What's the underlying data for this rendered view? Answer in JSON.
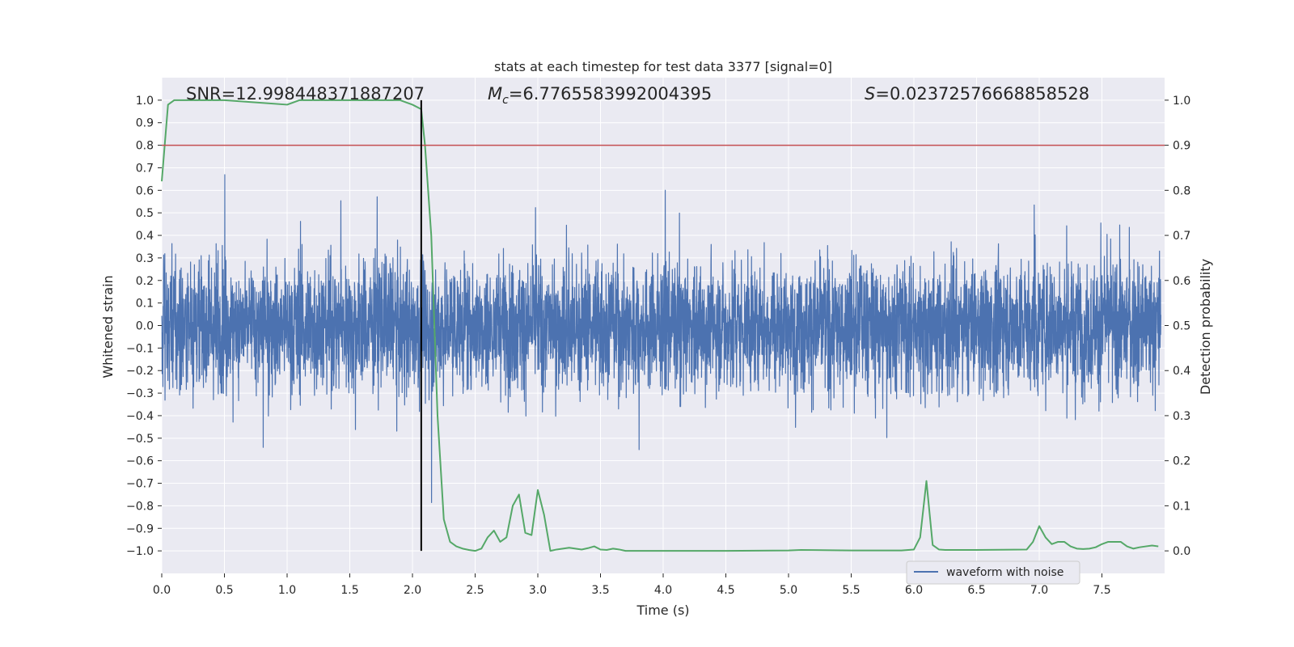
{
  "chart_data": {
    "type": "line",
    "title": "stats at each timestep for test data 3377 [signal=0]",
    "xlabel": "Time (s)",
    "ylabel_left": "Whitened strain",
    "ylabel_right": "Detection probability",
    "xlim": [
      0.0,
      8.0
    ],
    "ylim_left": [
      -1.1,
      1.1
    ],
    "ylim_right": [
      -0.05,
      1.05
    ],
    "x_ticks": [
      0.0,
      0.5,
      1.0,
      1.5,
      2.0,
      2.5,
      3.0,
      3.5,
      4.0,
      4.5,
      5.0,
      5.5,
      6.0,
      6.5,
      7.0,
      7.5
    ],
    "x_tick_labels": [
      "0.0",
      "0.5",
      "1.0",
      "1.5",
      "2.0",
      "2.5",
      "3.0",
      "3.5",
      "4.0",
      "4.5",
      "5.0",
      "5.5",
      "6.0",
      "6.5",
      "7.0",
      "7.5"
    ],
    "y_left_ticks": [
      -1.0,
      -0.9,
      -0.8,
      -0.7,
      -0.6,
      -0.5,
      -0.4,
      -0.3,
      -0.2,
      -0.1,
      0.0,
      0.1,
      0.2,
      0.3,
      0.4,
      0.5,
      0.6,
      0.7,
      0.8,
      0.9,
      1.0
    ],
    "y_left_tick_labels": [
      "−1.0",
      "−0.9",
      "−0.8",
      "−0.7",
      "−0.6",
      "−0.5",
      "−0.4",
      "−0.3",
      "−0.2",
      "−0.1",
      "0.0",
      "0.1",
      "0.2",
      "0.3",
      "0.4",
      "0.5",
      "0.6",
      "0.7",
      "0.8",
      "0.9",
      "1.0"
    ],
    "y_right_ticks": [
      0.0,
      0.1,
      0.2,
      0.3,
      0.4,
      0.5,
      0.6,
      0.7,
      0.8,
      0.9,
      1.0
    ],
    "y_right_tick_labels": [
      "0.0",
      "0.1",
      "0.2",
      "0.3",
      "0.4",
      "0.5",
      "0.6",
      "0.7",
      "0.8",
      "0.9",
      "1.0"
    ],
    "grid": true,
    "legend": {
      "placement": "lower-right",
      "entries": [
        {
          "name": "waveform with noise",
          "color": "#4c72b0"
        }
      ]
    },
    "annotations": {
      "snr": "SNR=12.998448371887207",
      "mc_symbol": "M",
      "mc_sub": "c",
      "mc_value": "=6.7765583992004395",
      "s_symbol": "S",
      "s_value": "=0.02372576668858528"
    },
    "colors": {
      "background": "#eaeaf2",
      "waveform": "#4c72b0",
      "probability": "#55a868",
      "threshold": "#c44e52",
      "marker": "#000000"
    },
    "series": [
      {
        "name": "waveform with noise",
        "axis": "left",
        "summary": "dense noisy whitened strain over 0.0-8.0 s; body within about ±0.4, peaks near ±1.0"
      },
      {
        "name": "detection probability",
        "axis": "right",
        "x": [
          0.0,
          0.05,
          0.1,
          0.2,
          0.5,
          1.0,
          1.1,
          1.5,
          1.8,
          1.9,
          2.0,
          2.07,
          2.1,
          2.15,
          2.2,
          2.25,
          2.3,
          2.35,
          2.4,
          2.45,
          2.5,
          2.55,
          2.6,
          2.65,
          2.7,
          2.75,
          2.8,
          2.85,
          2.9,
          2.95,
          3.0,
          3.05,
          3.1,
          3.15,
          3.2,
          3.25,
          3.3,
          3.35,
          3.4,
          3.45,
          3.5,
          3.55,
          3.6,
          3.65,
          3.7,
          3.75,
          3.8,
          3.85,
          3.9,
          4.0,
          4.5,
          5.0,
          5.1,
          5.5,
          5.9,
          6.0,
          6.05,
          6.1,
          6.15,
          6.2,
          6.25,
          6.5,
          6.9,
          6.95,
          7.0,
          7.05,
          7.1,
          7.15,
          7.2,
          7.25,
          7.3,
          7.35,
          7.4,
          7.45,
          7.5,
          7.55,
          7.6,
          7.65,
          7.7,
          7.75,
          7.8,
          7.85,
          7.9,
          7.95
        ],
        "y": [
          0.82,
          0.99,
          1.0,
          1.0,
          1.0,
          0.99,
          1.0,
          1.0,
          1.0,
          1.0,
          0.99,
          0.98,
          0.9,
          0.7,
          0.3,
          0.07,
          0.02,
          0.01,
          0.005,
          0.002,
          0.0,
          0.005,
          0.03,
          0.045,
          0.02,
          0.03,
          0.1,
          0.125,
          0.04,
          0.035,
          0.135,
          0.08,
          0.0,
          0.003,
          0.005,
          0.007,
          0.005,
          0.003,
          0.006,
          0.01,
          0.003,
          0.002,
          0.005,
          0.003,
          0.0,
          0.0,
          0.0,
          0.0,
          0.0,
          0.0,
          0.0,
          0.001,
          0.002,
          0.001,
          0.001,
          0.003,
          0.03,
          0.155,
          0.013,
          0.003,
          0.002,
          0.002,
          0.003,
          0.02,
          0.055,
          0.03,
          0.015,
          0.02,
          0.02,
          0.01,
          0.005,
          0.004,
          0.005,
          0.008,
          0.015,
          0.02,
          0.02,
          0.02,
          0.01,
          0.005,
          0.008,
          0.01,
          0.012,
          0.01
        ]
      },
      {
        "name": "threshold",
        "axis": "right",
        "type": "hline",
        "y": 0.9
      },
      {
        "name": "detection time",
        "axis": "left",
        "type": "vline",
        "x": 2.07,
        "y_range": [
          -1.0,
          1.0
        ]
      }
    ]
  }
}
